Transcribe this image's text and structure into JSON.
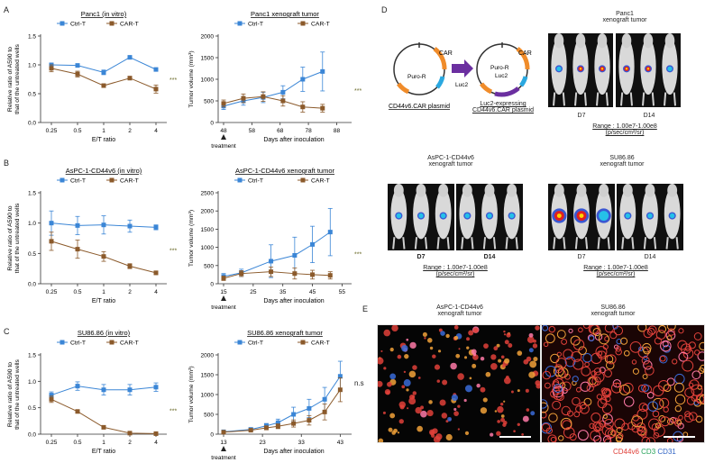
{
  "panel_letters": [
    "A",
    "B",
    "C",
    "D",
    "E"
  ],
  "colors": {
    "ctrl": "#3b86d6",
    "car": "#8b5a2b",
    "luc_arrow": "#6b2fa0",
    "cd44v6": "#e0413a",
    "cd3": "#27a35a",
    "cd31": "#2f63c4",
    "imaging_bg": "#0a0a0a"
  },
  "chart_data": [
    {
      "id": "a-vitro",
      "type": "line",
      "title": "Panc1 (in vitro)",
      "xlabel": "E/T ratio",
      "ylabel": [
        "Relative ratio of A590 to",
        "that of the untreated wells"
      ],
      "x_ticks": [
        "0.25",
        "0.5",
        "1",
        "2",
        "4"
      ],
      "y_ticks": [
        "0.0",
        "0.5",
        "1.0",
        "1.5"
      ],
      "ylim": [
        0,
        1.5
      ],
      "legend": [
        "Ctrl-T",
        "CAR-T"
      ],
      "significance": "***",
      "series": [
        {
          "name": "Ctrl-T",
          "values": [
            1.0,
            0.99,
            0.87,
            1.13,
            0.92
          ],
          "err": [
            0.03,
            0.02,
            0.04,
            0.03,
            0.02
          ]
        },
        {
          "name": "CAR-T",
          "values": [
            0.94,
            0.84,
            0.64,
            0.77,
            0.58
          ],
          "err": [
            0.06,
            0.05,
            0.03,
            0.03,
            0.07
          ]
        }
      ]
    },
    {
      "id": "a-xeno",
      "type": "line",
      "title": "Panc1 xenograft tumor",
      "xlabel": "Days after inoculation",
      "ylabel": [
        "Tumor volume (mm³)"
      ],
      "x_ticks": [
        "48",
        "58",
        "68",
        "78",
        "88"
      ],
      "x_tick_values": [
        48,
        58,
        68,
        78,
        88
      ],
      "xlim": [
        48,
        92
      ],
      "y_ticks": [
        "0",
        "500",
        "1000",
        "1500",
        "2000"
      ],
      "ylim": [
        0,
        2000
      ],
      "treatment_label": "treatment",
      "legend": [
        "Ctrl-T",
        "CAR-T"
      ],
      "significance": "***",
      "series": [
        {
          "name": "Ctrl-T",
          "x": [
            48,
            55,
            62,
            69,
            76,
            83
          ],
          "values": [
            380,
            500,
            580,
            700,
            1000,
            1180
          ],
          "err": [
            80,
            100,
            120,
            150,
            280,
            450
          ]
        },
        {
          "name": "CAR-T",
          "x": [
            48,
            55,
            62,
            69,
            76,
            83
          ],
          "values": [
            440,
            560,
            600,
            500,
            360,
            330
          ],
          "err": [
            80,
            100,
            110,
            120,
            120,
            90
          ]
        }
      ]
    },
    {
      "id": "b-vitro",
      "type": "line",
      "title": "AsPC-1-CD44v6 (in vitro)",
      "xlabel": "E/T ratio",
      "ylabel": [
        "Relative ratio of A590 to",
        "that of the untreated wells"
      ],
      "x_ticks": [
        "0.25",
        "0.5",
        "1",
        "2",
        "4"
      ],
      "y_ticks": [
        "0.0",
        "0.5",
        "1.0",
        "1.5"
      ],
      "ylim": [
        0,
        1.5
      ],
      "legend": [
        "Ctrl-T",
        "CAR-T"
      ],
      "significance": "***",
      "series": [
        {
          "name": "Ctrl-T",
          "values": [
            1.0,
            0.96,
            0.97,
            0.95,
            0.93
          ],
          "err": [
            0.2,
            0.15,
            0.15,
            0.1,
            0.04
          ]
        },
        {
          "name": "CAR-T",
          "values": [
            0.7,
            0.57,
            0.45,
            0.29,
            0.18
          ],
          "err": [
            0.15,
            0.15,
            0.08,
            0.04,
            0.03
          ]
        }
      ]
    },
    {
      "id": "b-xeno",
      "type": "line",
      "title": "AsPC-1-CD44v6 xenograft tumor",
      "xlabel": "Days after inoculation",
      "ylabel": [
        "Tumor volume (mm³)"
      ],
      "x_ticks": [
        "15",
        "25",
        "35",
        "45",
        "55"
      ],
      "x_tick_values": [
        15,
        25,
        35,
        45,
        55
      ],
      "xlim": [
        15,
        57
      ],
      "y_ticks": [
        "0",
        "500",
        "1000",
        "1500",
        "2000",
        "2500"
      ],
      "ylim": [
        0,
        2500
      ],
      "treatment_label": "treatment",
      "legend": [
        "Ctrl-T",
        "CAR-T"
      ],
      "significance": "***",
      "series": [
        {
          "name": "Ctrl-T",
          "x": [
            15,
            21,
            31,
            39,
            45,
            51
          ],
          "values": [
            200,
            300,
            620,
            780,
            1080,
            1420
          ],
          "err": [
            80,
            100,
            450,
            500,
            500,
            650
          ]
        },
        {
          "name": "CAR-T",
          "x": [
            15,
            21,
            31,
            39,
            45,
            51
          ],
          "values": [
            150,
            280,
            330,
            280,
            250,
            230
          ],
          "err": [
            60,
            80,
            130,
            150,
            120,
            100
          ]
        }
      ]
    },
    {
      "id": "c-vitro",
      "type": "line",
      "title": "SU86.86 (in vitro)",
      "xlabel": "E/T ratio",
      "ylabel": [
        "Relative ratio of A590 to",
        "that of the untreated wells"
      ],
      "x_ticks": [
        "0.25",
        "0.5",
        "1",
        "2",
        "4"
      ],
      "y_ticks": [
        "0.0",
        "0.5",
        "1.0",
        "1.5"
      ],
      "ylim": [
        0,
        1.5
      ],
      "legend": [
        "Ctrl-T",
        "CAR-T"
      ],
      "significance": "***",
      "series": [
        {
          "name": "Ctrl-T",
          "values": [
            0.74,
            0.91,
            0.84,
            0.84,
            0.89
          ],
          "err": [
            0.06,
            0.08,
            0.1,
            0.1,
            0.08
          ]
        },
        {
          "name": "CAR-T",
          "values": [
            0.66,
            0.43,
            0.13,
            0.02,
            0.01
          ],
          "err": [
            0.06,
            0.02,
            0.02,
            0.01,
            0.01
          ]
        }
      ]
    },
    {
      "id": "c-xeno",
      "type": "line",
      "title": "SU86.86 xenograft tumor",
      "xlabel": "Days after inoculation",
      "ylabel": [
        "Tumor volume (mm³)"
      ],
      "x_ticks": [
        "13",
        "23",
        "33",
        "43"
      ],
      "x_tick_values": [
        13,
        23,
        33,
        43
      ],
      "xlim": [
        13,
        45
      ],
      "y_ticks": [
        "0",
        "500",
        "1000",
        "1500",
        "2000"
      ],
      "ylim": [
        0,
        2000
      ],
      "treatment_label": "treatment",
      "legend": [
        "Ctrl-T",
        "CAR-T"
      ],
      "significance": "n.s",
      "series": [
        {
          "name": "Ctrl-T",
          "x": [
            13,
            20,
            24,
            27,
            31,
            35,
            39,
            43
          ],
          "values": [
            60,
            120,
            210,
            290,
            500,
            650,
            880,
            1460
          ],
          "err": [
            20,
            40,
            60,
            90,
            180,
            230,
            300,
            380
          ]
        },
        {
          "name": "CAR-T",
          "x": [
            13,
            20,
            24,
            27,
            31,
            35,
            39,
            43
          ],
          "values": [
            50,
            100,
            160,
            200,
            270,
            350,
            560,
            1120
          ],
          "err": [
            20,
            30,
            50,
            60,
            90,
            120,
            200,
            300
          ]
        }
      ]
    }
  ],
  "panel_d": {
    "plasmid1": {
      "name": "CD44v6.CAR plasmid",
      "car": "CAR",
      "puro": "Puro-R"
    },
    "arrow_label": "Luc2",
    "plasmid2": {
      "name_line1": "Luc2-expressing",
      "name_line2": "CD44v6.CAR plasmid",
      "puro": "Puro-R",
      "luc": "Luc2",
      "car": "CAR"
    },
    "panc1": {
      "title_line1": "Panc1",
      "title_line2": "xenograft tumor",
      "d7": "D7",
      "d14": "D14",
      "range": "Range : 1.00e7-1.00e8",
      "units": "(p/sec/cm²/sr)"
    },
    "aspc1": {
      "title_line1": "AsPC-1-CD44v6",
      "title_line2": "xenograft tumor",
      "d7": "D7",
      "d14": "D14",
      "range": "Range : 1.00e7-1.00e8",
      "units": "(p/sec/cm²/sr)"
    },
    "su86": {
      "title_line1": "SU86.86",
      "title_line2": "xenograft tumor",
      "d7": "D7",
      "d14": "D14",
      "range": "Range : 1.00e7-1.00e8",
      "units": "(p/sec/cm²/sr)"
    }
  },
  "panel_e": {
    "left_title_line1": "AsPC-1-CD44v6",
    "left_title_line2": "xenograft tumor",
    "right_title_line1": "SU86.86",
    "right_title_line2": "xenograft tumor",
    "legend_cd44v6": "CD44v6",
    "legend_cd3": "CD3",
    "legend_cd31": "CD31"
  }
}
